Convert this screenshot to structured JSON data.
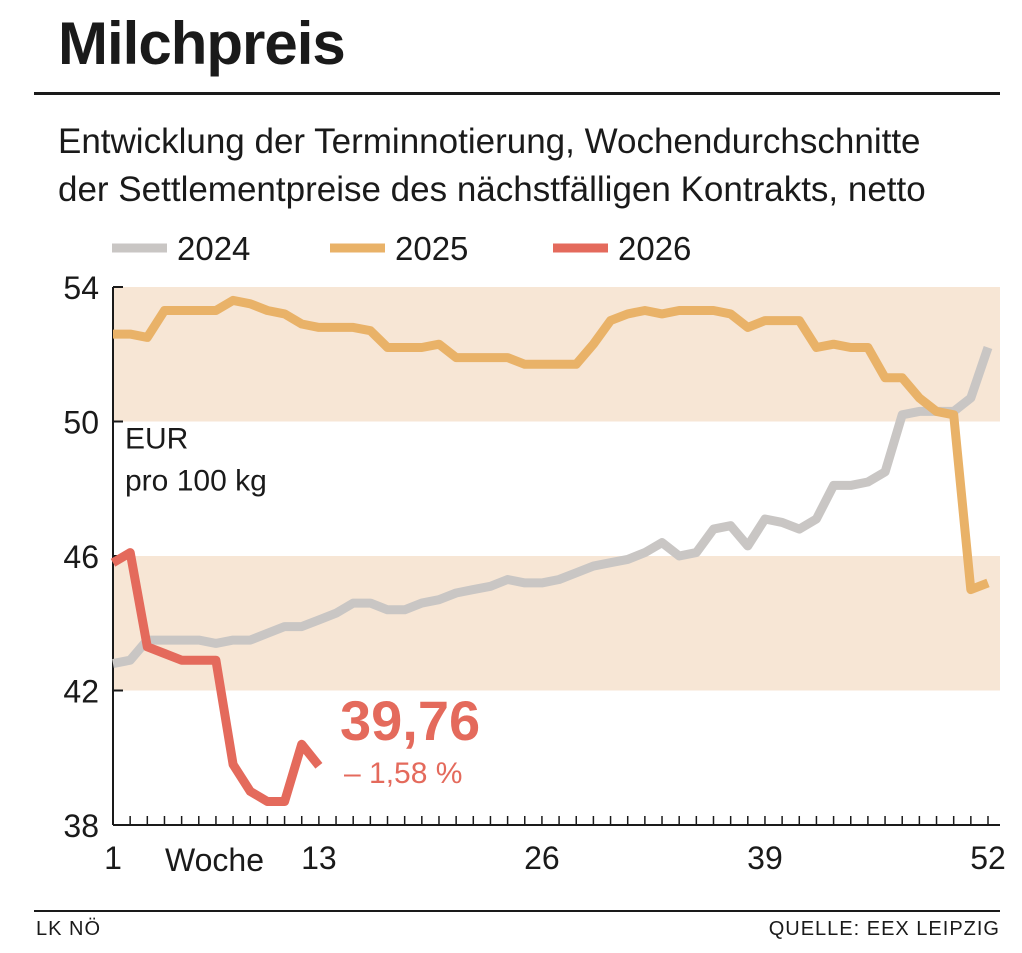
{
  "header": {
    "title": "Milchpreis",
    "subtitle_line1": "Entwicklung der Terminnotierung, Wochendurchschnitte",
    "subtitle_line2": "der Settlementpreise des nächstfälligen Kontrakts, netto"
  },
  "footer": {
    "left": "LK NÖ",
    "right": "QUELLE: EEX LEIPZIG"
  },
  "chart_data": {
    "type": "line",
    "unit_line1": "EUR",
    "unit_line2": "pro 100 kg",
    "xlabel": "Woche",
    "xlim": [
      1,
      52
    ],
    "ylim": [
      38,
      54
    ],
    "y_ticks": [
      38,
      42,
      46,
      50,
      54
    ],
    "x_ticks": [
      1,
      13,
      26,
      39,
      52
    ],
    "bands": [
      [
        42,
        46
      ],
      [
        50,
        54
      ]
    ],
    "band_color": "#f7e6d5",
    "legend_position": "top",
    "series": [
      {
        "name": "2024",
        "color": "#c9c6c4",
        "x": [
          1,
          2,
          3,
          4,
          5,
          6,
          7,
          8,
          9,
          10,
          11,
          12,
          13,
          14,
          15,
          16,
          17,
          18,
          19,
          20,
          21,
          22,
          23,
          24,
          25,
          26,
          27,
          28,
          29,
          30,
          31,
          32,
          33,
          34,
          35,
          36,
          37,
          38,
          39,
          40,
          41,
          42,
          43,
          44,
          45,
          46,
          47,
          48,
          49,
          50,
          51,
          52
        ],
        "values": [
          42.8,
          42.9,
          43.5,
          43.5,
          43.5,
          43.5,
          43.4,
          43.5,
          43.5,
          43.7,
          43.9,
          43.9,
          44.1,
          44.3,
          44.6,
          44.6,
          44.4,
          44.4,
          44.6,
          44.7,
          44.9,
          45.0,
          45.1,
          45.3,
          45.2,
          45.2,
          45.3,
          45.5,
          45.7,
          45.8,
          45.9,
          46.1,
          46.4,
          46.0,
          46.1,
          46.8,
          46.9,
          46.3,
          47.1,
          47.0,
          46.8,
          47.1,
          48.1,
          48.1,
          48.2,
          48.5,
          50.2,
          50.3,
          50.3,
          50.3,
          50.7,
          52.2
        ]
      },
      {
        "name": "2025",
        "color": "#e9b268",
        "x": [
          1,
          2,
          3,
          4,
          5,
          6,
          7,
          8,
          9,
          10,
          11,
          12,
          13,
          14,
          15,
          16,
          17,
          18,
          19,
          20,
          21,
          22,
          23,
          24,
          25,
          26,
          27,
          28,
          29,
          30,
          31,
          32,
          33,
          34,
          35,
          36,
          37,
          38,
          39,
          40,
          41,
          42,
          43,
          44,
          45,
          46,
          47,
          48,
          49,
          50,
          51,
          52
        ],
        "values": [
          52.6,
          52.6,
          52.5,
          53.3,
          53.3,
          53.3,
          53.3,
          53.6,
          53.5,
          53.3,
          53.2,
          52.9,
          52.8,
          52.8,
          52.8,
          52.7,
          52.2,
          52.2,
          52.2,
          52.3,
          51.9,
          51.9,
          51.9,
          51.9,
          51.7,
          51.7,
          51.7,
          51.7,
          52.3,
          53.0,
          53.2,
          53.3,
          53.2,
          53.3,
          53.3,
          53.3,
          53.2,
          52.8,
          53.0,
          53.0,
          53.0,
          52.2,
          52.3,
          52.2,
          52.2,
          51.3,
          51.3,
          50.7,
          50.3,
          50.2,
          45.0,
          45.2
        ]
      },
      {
        "name": "2026",
        "color": "#e46a5c",
        "x": [
          1,
          2,
          3,
          4,
          5,
          6,
          7,
          8,
          9,
          10,
          11,
          12,
          13
        ],
        "values": [
          45.8,
          46.1,
          43.3,
          43.1,
          42.9,
          42.9,
          42.9,
          39.8,
          39.0,
          38.7,
          38.7,
          40.4,
          39.76
        ]
      }
    ],
    "annotation": {
      "value": "39,76",
      "change": "– 1,58 %",
      "color": "#e46a5c"
    }
  }
}
